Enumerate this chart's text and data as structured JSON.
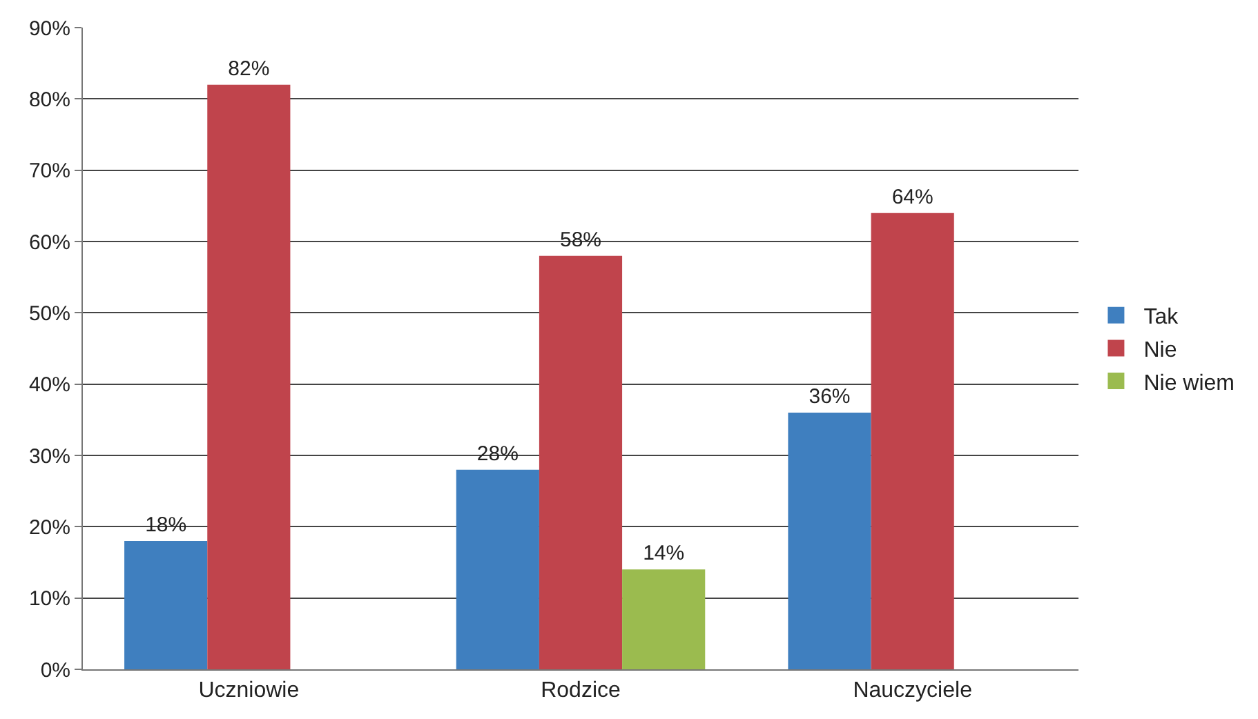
{
  "chart_data": {
    "type": "bar",
    "categories": [
      "Uczniowie",
      "Rodzice",
      "Nauczyciele"
    ],
    "series": [
      {
        "name": "Tak",
        "color": "#3f7fbf",
        "values": [
          18,
          28,
          36
        ],
        "value_labels": [
          "18%",
          "28%",
          "36%"
        ]
      },
      {
        "name": "Nie",
        "color": "#c0444c",
        "values": [
          82,
          58,
          64
        ],
        "value_labels": [
          "82%",
          "58%",
          "64%"
        ]
      },
      {
        "name": "Nie wiem",
        "color": "#9bbb4f",
        "values": [
          0,
          14,
          0
        ],
        "value_labels": [
          null,
          "14%",
          null
        ]
      }
    ],
    "ylim": [
      0,
      90
    ],
    "yticks": [
      {
        "value": 0,
        "label": "0%"
      },
      {
        "value": 10,
        "label": "10%"
      },
      {
        "value": 20,
        "label": "20%"
      },
      {
        "value": 30,
        "label": "30%"
      },
      {
        "value": 40,
        "label": "40%"
      },
      {
        "value": 50,
        "label": "50%"
      },
      {
        "value": 60,
        "label": "60%"
      },
      {
        "value": 70,
        "label": "70%"
      },
      {
        "value": 80,
        "label": "80%"
      },
      {
        "value": 90,
        "label": "90%"
      }
    ],
    "grid": "y",
    "legend": "right"
  }
}
